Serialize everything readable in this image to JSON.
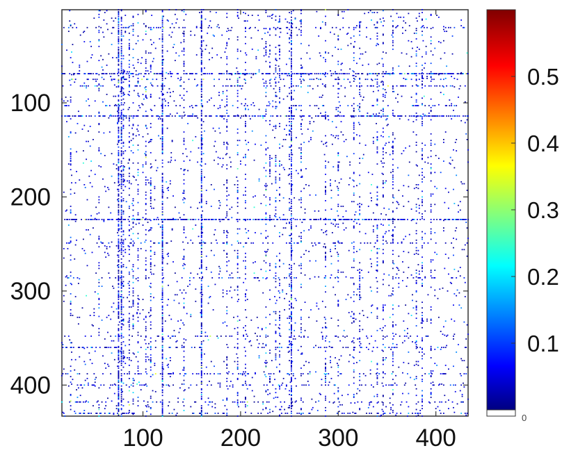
{
  "chart_data": {
    "type": "heatmap",
    "title": "",
    "xlabel": "",
    "ylabel": "",
    "xlim": [
      17,
      433
    ],
    "ylim": [
      433,
      1
    ],
    "x_ticks": [
      100,
      200,
      300,
      400
    ],
    "y_ticks": [
      100,
      200,
      300,
      400
    ],
    "x_tick_labels": [
      "100",
      "200",
      "300",
      "400"
    ],
    "y_tick_labels": [
      "100",
      "200",
      "300",
      "400"
    ],
    "colorbar": {
      "colormap": "jet",
      "range": [
        0,
        0.6
      ],
      "ticks": [
        0.1,
        0.2,
        0.3,
        0.4,
        0.5
      ],
      "tick_labels": [
        "0.1",
        "0.2",
        "0.3",
        "0.4",
        "0.5"
      ],
      "min_label": "0"
    },
    "dense_rows": [
      69,
      114,
      224
    ],
    "dense_cols": [
      75,
      78,
      120,
      160,
      252
    ],
    "moderate_rows": [
      20,
      75,
      82,
      103,
      249,
      286,
      348,
      360,
      388,
      400,
      418,
      430
    ],
    "moderate_cols": [
      26,
      55,
      80,
      86,
      90,
      95,
      103,
      108,
      142,
      186,
      197,
      205,
      226,
      230,
      236,
      240,
      250,
      262,
      287,
      300,
      316,
      322,
      340,
      346,
      356,
      380,
      386,
      395
    ],
    "sparse_density": 0.011
  }
}
